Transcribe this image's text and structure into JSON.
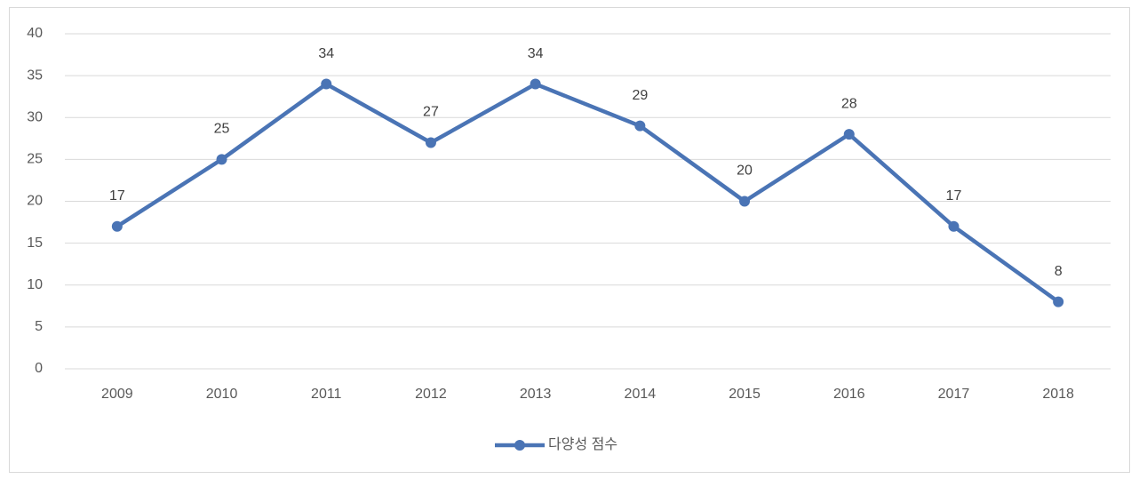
{
  "chart_data": {
    "type": "line",
    "categories": [
      "2009",
      "2010",
      "2011",
      "2012",
      "2013",
      "2014",
      "2015",
      "2016",
      "2017",
      "2018"
    ],
    "series": [
      {
        "name": "다양성 점수",
        "color": "#4a74b5",
        "values": [
          17,
          25,
          34,
          27,
          34,
          29,
          20,
          28,
          17,
          8
        ]
      }
    ],
    "ylim": [
      0,
      40
    ],
    "yticks": [
      0,
      5,
      10,
      15,
      20,
      25,
      30,
      35,
      40
    ],
    "grid": true,
    "data_labels": true,
    "legend": "bottom"
  }
}
